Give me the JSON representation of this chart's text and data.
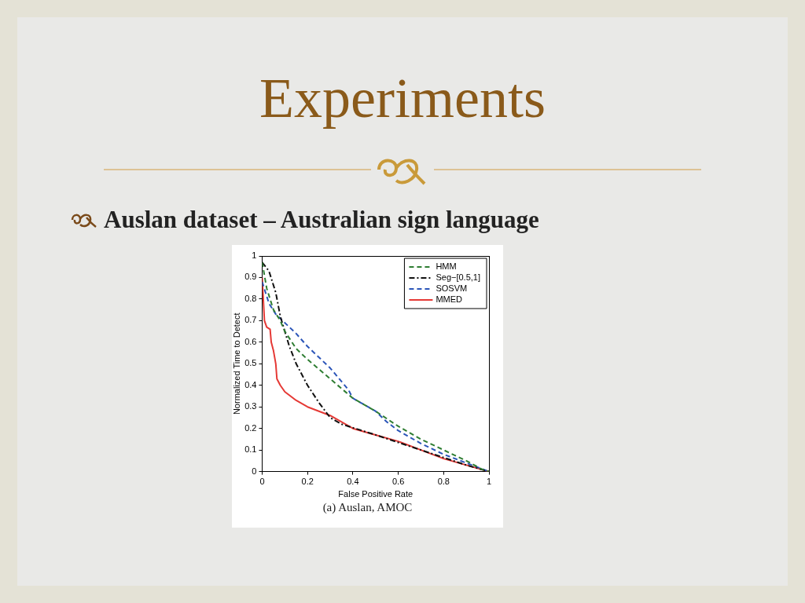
{
  "chart_data": {
    "type": "line",
    "title": "Experiments",
    "subtitle": "Auslan dataset – Australian sign language",
    "xlabel": "False Positive Rate",
    "ylabel": "Normalized Time to Detect",
    "annotations": [
      "(a)  Auslan, AMOC"
    ],
    "xlim": [
      0,
      1
    ],
    "xticks": [
      0,
      0.2,
      0.4,
      0.6,
      0.8,
      1
    ],
    "ylim": [
      0,
      1
    ],
    "yticks": [
      0,
      0.1,
      0.2,
      0.3,
      0.4,
      0.5,
      0.6,
      0.7,
      0.8,
      0.9,
      1
    ],
    "grid": false,
    "legend": "top right",
    "marker": "none",
    "series": [
      {
        "name": "HMM",
        "color": "#2e7d32",
        "line_style": "dashed",
        "x": [
          0,
          0.02,
          0.05,
          0.08,
          0.1,
          0.15,
          0.2,
          0.3,
          0.4,
          0.5,
          0.6,
          0.7,
          0.8,
          0.9,
          0.97,
          1
        ],
        "values": [
          0.97,
          0.85,
          0.75,
          0.7,
          0.65,
          0.57,
          0.52,
          0.43,
          0.34,
          0.28,
          0.21,
          0.15,
          0.1,
          0.05,
          0.01,
          0
        ]
      },
      {
        "name": "Seg−[0.5,1]",
        "color": "#111111",
        "line_style": "dashdot",
        "x": [
          0,
          0.03,
          0.06,
          0.08,
          0.1,
          0.12,
          0.15,
          0.2,
          0.25,
          0.3,
          0.35,
          0.38,
          0.5,
          0.7,
          0.9,
          1
        ],
        "values": [
          0.97,
          0.93,
          0.83,
          0.72,
          0.65,
          0.58,
          0.5,
          0.4,
          0.32,
          0.25,
          0.22,
          0.21,
          0.17,
          0.1,
          0.03,
          0
        ]
      },
      {
        "name": "SOSVM",
        "color": "#2b55b8",
        "line_style": "dashed",
        "x": [
          0,
          0.03,
          0.06,
          0.1,
          0.15,
          0.2,
          0.3,
          0.38,
          0.4,
          0.5,
          0.55,
          0.6,
          0.7,
          0.8,
          0.9,
          1
        ],
        "values": [
          0.88,
          0.78,
          0.73,
          0.69,
          0.64,
          0.58,
          0.48,
          0.38,
          0.34,
          0.28,
          0.23,
          0.19,
          0.13,
          0.08,
          0.04,
          0
        ]
      },
      {
        "name": "MMED",
        "color": "#e53935",
        "line_style": "solid",
        "x": [
          0,
          0.005,
          0.01,
          0.02,
          0.035,
          0.04,
          0.05,
          0.06,
          0.065,
          0.08,
          0.1,
          0.15,
          0.2,
          0.3,
          0.4,
          0.5,
          0.6,
          0.7,
          0.8,
          0.9,
          1
        ],
        "values": [
          0.9,
          0.8,
          0.7,
          0.67,
          0.66,
          0.6,
          0.56,
          0.5,
          0.43,
          0.4,
          0.37,
          0.33,
          0.3,
          0.26,
          0.2,
          0.17,
          0.14,
          0.1,
          0.06,
          0.03,
          0
        ]
      }
    ]
  }
}
